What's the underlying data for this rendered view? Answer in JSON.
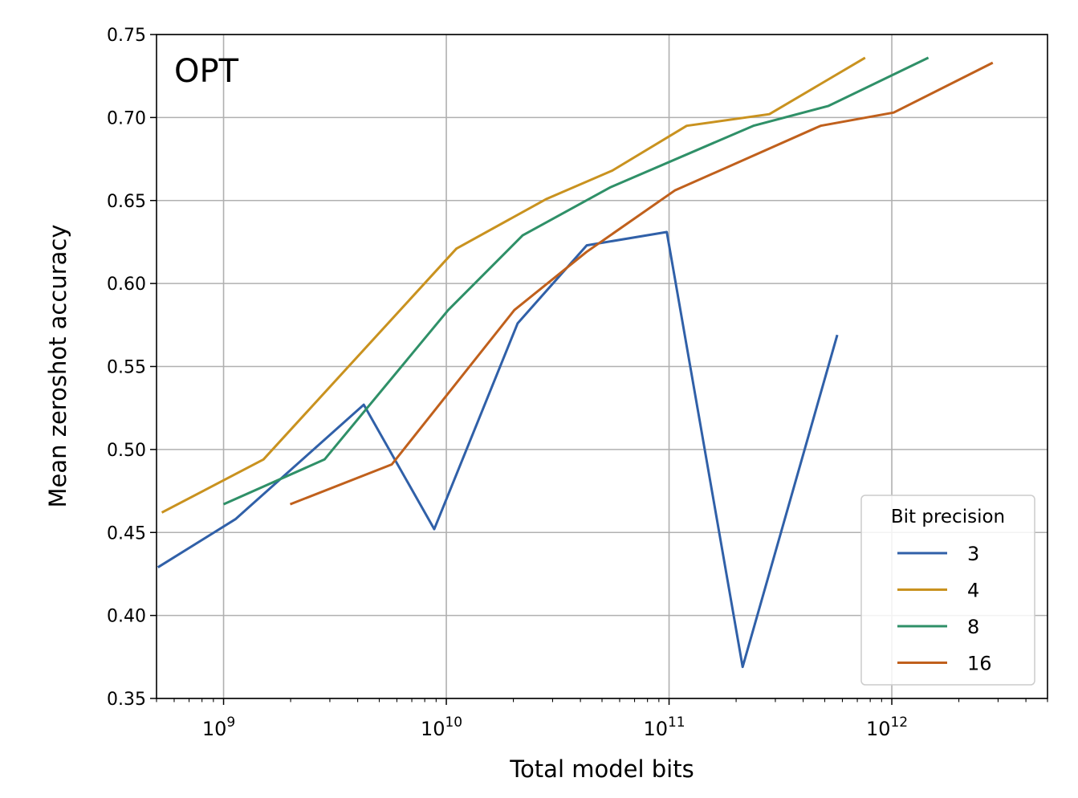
{
  "chart_data": {
    "type": "line",
    "title": "OPT",
    "xlabel": "Total model bits",
    "ylabel": "Mean zeroshot accuracy",
    "xscale": "log",
    "xlim": [
      500000000.0,
      5000000000000.0
    ],
    "ylim": [
      0.35,
      0.75
    ],
    "grid": true,
    "x_ticks": [
      {
        "value": 1000000000.0,
        "base": "10",
        "exp": "9"
      },
      {
        "value": 10000000000.0,
        "base": "10",
        "exp": "10"
      },
      {
        "value": 100000000000.0,
        "base": "10",
        "exp": "11"
      },
      {
        "value": 1000000000000.0,
        "base": "10",
        "exp": "12"
      }
    ],
    "y_ticks": [
      "0.35",
      "0.40",
      "0.45",
      "0.50",
      "0.55",
      "0.60",
      "0.65",
      "0.70",
      "0.75"
    ],
    "legend": {
      "title": "Bit precision",
      "placement": "lower-right"
    },
    "series": [
      {
        "name": "3",
        "color": "#3060a8",
        "x": [
          507000000.0,
          1130000000.0,
          4260000000.0,
          8830000000.0,
          20900000000.0,
          42700000000.0,
          97700000000.0,
          214000000000.0,
          569000000000.0
        ],
        "y": [
          0.429,
          0.458,
          0.527,
          0.452,
          0.576,
          0.623,
          0.631,
          0.369,
          0.569
        ]
      },
      {
        "name": "4",
        "color": "#c9921f",
        "x": [
          528000000.0,
          1510000000.0,
          11100000000.0,
          28200000000.0,
          55600000000.0,
          120000000000.0,
          282000000000.0,
          759000000000.0
        ],
        "y": [
          0.462,
          0.494,
          0.621,
          0.651,
          0.668,
          0.695,
          0.702,
          0.736
        ]
      },
      {
        "name": "8",
        "color": "#2f9068",
        "x": [
          1000000000.0,
          2840000000.0,
          10200000000.0,
          22000000000.0,
          54600000000.0,
          239000000000.0,
          520000000000.0,
          1460000000000.0
        ],
        "y": [
          0.467,
          0.494,
          0.584,
          0.629,
          0.658,
          0.695,
          0.707,
          0.736
        ]
      },
      {
        "name": "16",
        "color": "#c0601c",
        "x": [
          1990000000.0,
          5690000000.0,
          20200000000.0,
          42600000000.0,
          106000000000.0,
          479000000000.0,
          1020000000000.0,
          2840000000000.0
        ],
        "y": [
          0.467,
          0.491,
          0.584,
          0.619,
          0.656,
          0.695,
          0.703,
          0.733
        ]
      }
    ]
  }
}
